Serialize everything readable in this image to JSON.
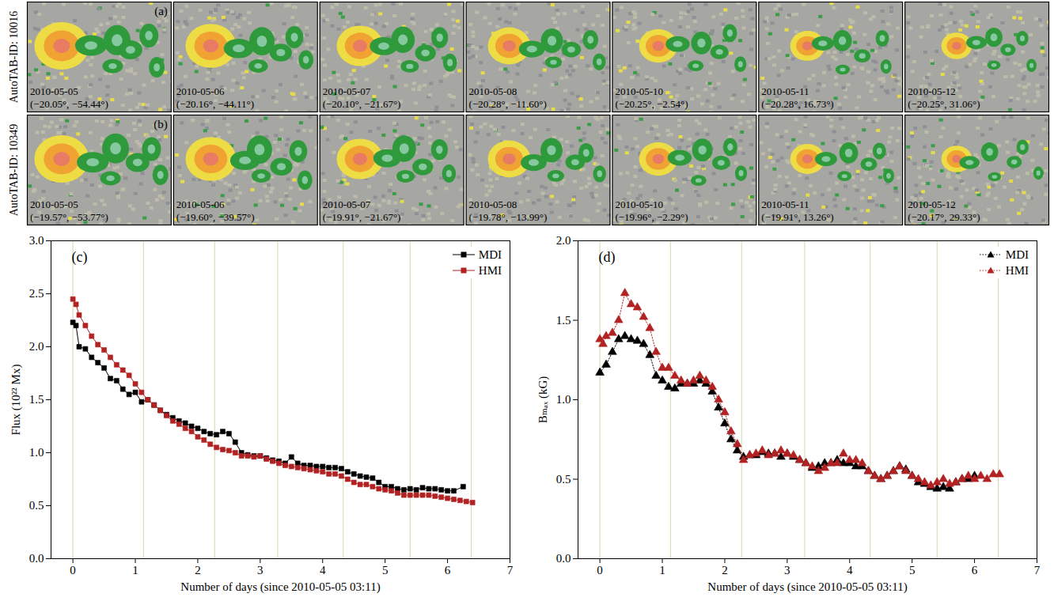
{
  "image_rows": [
    {
      "label": "AutoTAB-ID: 10016",
      "letter": "(a)",
      "panels": [
        {
          "date": "2010-05-05",
          "coords": "(−20.05°, −54.44°)"
        },
        {
          "date": "2010-05-06",
          "coords": "(−20.16°, −44.11°)"
        },
        {
          "date": "2010-05-07",
          "coords": "(−20.10°, −21.67°)"
        },
        {
          "date": "2010-05-08",
          "coords": "(−20.28°, −11.60°)"
        },
        {
          "date": "2010-05-10",
          "coords": "(−20.25°, −2.54°)"
        },
        {
          "date": "2010-05-11",
          "coords": "(−20.28°, 16.73°)"
        },
        {
          "date": "2010-05-12",
          "coords": "(−20.25°, 31.06°)"
        }
      ]
    },
    {
      "label": "AutoTAB-ID: 10349",
      "letter": "(b)",
      "panels": [
        {
          "date": "2010-05-05",
          "coords": "(−19.57°, −53.77°)"
        },
        {
          "date": "2010-05-06",
          "coords": "(−19.60°, −39.57°)"
        },
        {
          "date": "2010-05-07",
          "coords": "(−19.91°, −21.67°)"
        },
        {
          "date": "2010-05-08",
          "coords": "(−19.78°, −13.99°)"
        },
        {
          "date": "2010-05-10",
          "coords": "(−19.96°, −2.29°)"
        },
        {
          "date": "2010-05-11",
          "coords": "(−19.91°, 13.26°)"
        },
        {
          "date": "2010-05-12",
          "coords": "(−20.17°, 29.33°)"
        }
      ]
    }
  ],
  "chart_data": [
    {
      "type": "line",
      "panel": "(c)",
      "x_label": "Number of days (since 2010-05-05 03:11)",
      "y_label": "Flux (10²² Mx)",
      "xlim": [
        -0.35,
        7
      ],
      "xticks": [
        0,
        1,
        2,
        3,
        4,
        5,
        6,
        7
      ],
      "ylim": [
        0,
        3
      ],
      "yticks": [
        {
          "value": 0,
          "label": "0.0"
        },
        0.5,
        {
          "value": 1,
          "label": "1.0"
        },
        1.5,
        {
          "value": 2,
          "label": "2.0"
        },
        2.5,
        {
          "value": 3,
          "label": "3.0"
        }
      ],
      "grid": false,
      "legend": "top-right",
      "vlines": [
        0,
        1.13,
        2.27,
        3.28,
        4.33,
        5.4,
        6.38
      ],
      "series": [
        {
          "name": "MDI",
          "color": "#000000",
          "marker": "square",
          "line_style": "solid",
          "x": [
            0,
            0.05,
            0.1,
            0.2,
            0.3,
            0.4,
            0.5,
            0.6,
            0.7,
            0.8,
            0.9,
            1.0,
            1.1,
            1.2,
            1.3,
            1.4,
            1.5,
            1.6,
            1.7,
            1.8,
            1.9,
            2.0,
            2.1,
            2.2,
            2.3,
            2.4,
            2.5,
            2.6,
            2.7,
            2.8,
            2.9,
            3.0,
            3.1,
            3.2,
            3.3,
            3.4,
            3.5,
            3.6,
            3.7,
            3.8,
            3.9,
            4.0,
            4.1,
            4.2,
            4.3,
            4.4,
            4.5,
            4.6,
            4.7,
            4.8,
            4.9,
            5.0,
            5.1,
            5.2,
            5.3,
            5.4,
            5.5,
            5.6,
            5.7,
            5.8,
            5.9,
            6.0,
            6.1,
            6.25
          ],
          "values": [
            2.23,
            2.2,
            2.0,
            1.98,
            1.9,
            1.85,
            1.8,
            1.7,
            1.68,
            1.6,
            1.55,
            1.57,
            1.48,
            1.5,
            1.45,
            1.4,
            1.36,
            1.33,
            1.3,
            1.28,
            1.25,
            1.23,
            1.2,
            1.18,
            1.17,
            1.2,
            1.18,
            1.1,
            1.0,
            0.98,
            0.97,
            0.97,
            0.95,
            0.93,
            0.92,
            0.9,
            0.96,
            0.9,
            0.88,
            0.88,
            0.87,
            0.87,
            0.86,
            0.86,
            0.85,
            0.82,
            0.8,
            0.78,
            0.77,
            0.76,
            0.72,
            0.68,
            0.68,
            0.66,
            0.65,
            0.66,
            0.65,
            0.67,
            0.66,
            0.66,
            0.65,
            0.64,
            0.64,
            0.68
          ]
        },
        {
          "name": "HMI",
          "color": "#b22222",
          "marker": "square",
          "line_style": "solid",
          "x": [
            0,
            0.05,
            0.1,
            0.2,
            0.3,
            0.4,
            0.5,
            0.6,
            0.7,
            0.8,
            0.9,
            1.0,
            1.1,
            1.2,
            1.3,
            1.4,
            1.5,
            1.6,
            1.7,
            1.8,
            1.9,
            2.0,
            2.1,
            2.2,
            2.3,
            2.4,
            2.5,
            2.6,
            2.7,
            2.8,
            2.9,
            3.0,
            3.1,
            3.2,
            3.3,
            3.4,
            3.5,
            3.6,
            3.7,
            3.8,
            3.9,
            4.0,
            4.1,
            4.2,
            4.3,
            4.4,
            4.5,
            4.6,
            4.7,
            4.8,
            4.9,
            5.0,
            5.1,
            5.2,
            5.3,
            5.4,
            5.5,
            5.6,
            5.7,
            5.8,
            5.9,
            6.0,
            6.1,
            6.2,
            6.3,
            6.4
          ],
          "values": [
            2.45,
            2.4,
            2.3,
            2.2,
            2.1,
            2.02,
            1.97,
            1.9,
            1.83,
            1.78,
            1.73,
            1.65,
            1.57,
            1.5,
            1.45,
            1.4,
            1.35,
            1.3,
            1.27,
            1.23,
            1.2,
            1.15,
            1.12,
            1.08,
            1.05,
            1.03,
            1.02,
            1.0,
            0.97,
            0.97,
            0.96,
            0.97,
            0.94,
            0.92,
            0.9,
            0.88,
            0.87,
            0.86,
            0.85,
            0.84,
            0.83,
            0.82,
            0.8,
            0.8,
            0.78,
            0.75,
            0.72,
            0.7,
            0.7,
            0.68,
            0.66,
            0.65,
            0.64,
            0.62,
            0.6,
            0.6,
            0.6,
            0.6,
            0.6,
            0.59,
            0.58,
            0.57,
            0.56,
            0.55,
            0.54,
            0.53
          ]
        }
      ]
    },
    {
      "type": "line",
      "panel": "(d)",
      "x_label": "Number of days (since 2010-05-05 03:11)",
      "y_label": "Bₘₐₓ (kG)",
      "xlim": [
        -0.35,
        7
      ],
      "xticks": [
        0,
        1,
        2,
        3,
        4,
        5,
        6,
        7
      ],
      "ylim": [
        0,
        2
      ],
      "yticks": [
        {
          "value": 0,
          "label": "0.0"
        },
        0.5,
        {
          "value": 1,
          "label": "1.0"
        },
        1.5,
        {
          "value": 2,
          "label": "2.0"
        }
      ],
      "grid": false,
      "legend": "top-right",
      "vlines": [
        0,
        1.13,
        2.27,
        3.28,
        4.33,
        5.4,
        6.38
      ],
      "series": [
        {
          "name": "MDI",
          "color": "#000000",
          "marker": "triangle",
          "line_style": "dotted",
          "x": [
            0,
            0.1,
            0.2,
            0.3,
            0.4,
            0.5,
            0.6,
            0.7,
            0.8,
            0.9,
            1.0,
            1.1,
            1.2,
            1.3,
            1.4,
            1.5,
            1.6,
            1.7,
            1.8,
            1.9,
            2.0,
            2.1,
            2.2,
            2.3,
            2.4,
            2.5,
            2.6,
            2.7,
            2.8,
            2.9,
            3.0,
            3.1,
            3.2,
            3.3,
            3.4,
            3.5,
            3.6,
            3.7,
            3.8,
            3.9,
            4.0,
            4.1,
            4.2,
            4.3,
            4.4,
            4.5,
            4.6,
            4.7,
            4.8,
            4.9,
            5.0,
            5.1,
            5.2,
            5.3,
            5.4,
            5.5,
            5.6,
            5.7,
            5.8,
            5.9,
            6.0
          ],
          "values": [
            1.17,
            1.22,
            1.3,
            1.38,
            1.4,
            1.38,
            1.37,
            1.35,
            1.28,
            1.15,
            1.12,
            1.08,
            1.07,
            1.1,
            1.1,
            1.1,
            1.12,
            1.1,
            1.05,
            0.95,
            0.85,
            0.75,
            0.68,
            0.64,
            0.65,
            0.65,
            0.67,
            0.66,
            0.66,
            0.64,
            0.66,
            0.64,
            0.62,
            0.6,
            0.57,
            0.58,
            0.6,
            0.6,
            0.62,
            0.6,
            0.6,
            0.58,
            0.58,
            0.55,
            0.52,
            0.5,
            0.52,
            0.55,
            0.58,
            0.56,
            0.52,
            0.48,
            0.47,
            0.45,
            0.44,
            0.45,
            0.44,
            0.48,
            0.5,
            0.5,
            0.52
          ]
        },
        {
          "name": "HMI",
          "color": "#b22222",
          "marker": "triangle",
          "line_style": "dotted",
          "x": [
            0,
            0.05,
            0.1,
            0.2,
            0.3,
            0.4,
            0.5,
            0.6,
            0.7,
            0.8,
            0.9,
            1.0,
            1.1,
            1.2,
            1.3,
            1.4,
            1.5,
            1.6,
            1.7,
            1.8,
            1.9,
            2.0,
            2.1,
            2.2,
            2.3,
            2.4,
            2.5,
            2.6,
            2.7,
            2.8,
            2.9,
            3.0,
            3.1,
            3.2,
            3.3,
            3.4,
            3.5,
            3.6,
            3.7,
            3.8,
            3.9,
            4.0,
            4.1,
            4.2,
            4.3,
            4.4,
            4.5,
            4.6,
            4.7,
            4.8,
            4.9,
            5.0,
            5.1,
            5.2,
            5.3,
            5.4,
            5.5,
            5.6,
            5.7,
            5.8,
            5.9,
            6.0,
            6.1,
            6.2,
            6.3,
            6.4
          ],
          "values": [
            1.38,
            1.35,
            1.4,
            1.42,
            1.5,
            1.67,
            1.6,
            1.58,
            1.52,
            1.45,
            1.3,
            1.2,
            1.2,
            1.15,
            1.12,
            1.1,
            1.12,
            1.15,
            1.12,
            1.08,
            1.0,
            0.92,
            0.8,
            0.72,
            0.62,
            0.65,
            0.66,
            0.68,
            0.65,
            0.66,
            0.68,
            0.66,
            0.65,
            0.62,
            0.6,
            0.58,
            0.55,
            0.57,
            0.6,
            0.6,
            0.66,
            0.62,
            0.62,
            0.6,
            0.55,
            0.52,
            0.5,
            0.52,
            0.55,
            0.58,
            0.55,
            0.52,
            0.5,
            0.48,
            0.46,
            0.48,
            0.5,
            0.47,
            0.48,
            0.5,
            0.52,
            0.5,
            0.52,
            0.5,
            0.53,
            0.53
          ]
        }
      ]
    }
  ]
}
